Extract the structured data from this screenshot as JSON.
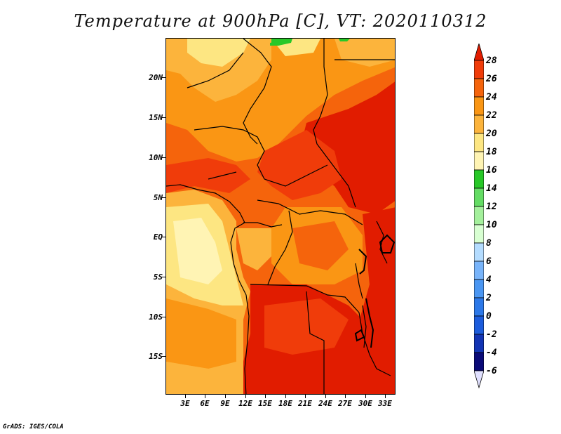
{
  "title": "Temperature at 900hPa [C], VT: 2020110312",
  "footer": "GrADS: IGES/COLA",
  "lat_labels": [
    "20N",
    "15N",
    "10N",
    "5N",
    "EQ",
    "5S",
    "10S",
    "15S"
  ],
  "lon_labels": [
    "3E",
    "6E",
    "9E",
    "12E",
    "15E",
    "18E",
    "21E",
    "24E",
    "27E",
    "30E",
    "33E"
  ],
  "colorbar": {
    "levels": [
      "28",
      "26",
      "24",
      "22",
      "20",
      "18",
      "16",
      "14",
      "12",
      "10",
      "8",
      "6",
      "4",
      "2",
      "0",
      "-2",
      "-4",
      "-6"
    ],
    "colors": [
      "#e11c00",
      "#f03c0a",
      "#f5640c",
      "#fa9614",
      "#fcb43c",
      "#fde682",
      "#fff4b4",
      "#28c828",
      "#64dc64",
      "#a4f09c",
      "#d8ffd2",
      "#b4dcff",
      "#78b4fa",
      "#4a96f2",
      "#2c78e8",
      "#1c5cdc",
      "#1234b4",
      "#0a0a78",
      "#e0e0ff"
    ]
  }
}
